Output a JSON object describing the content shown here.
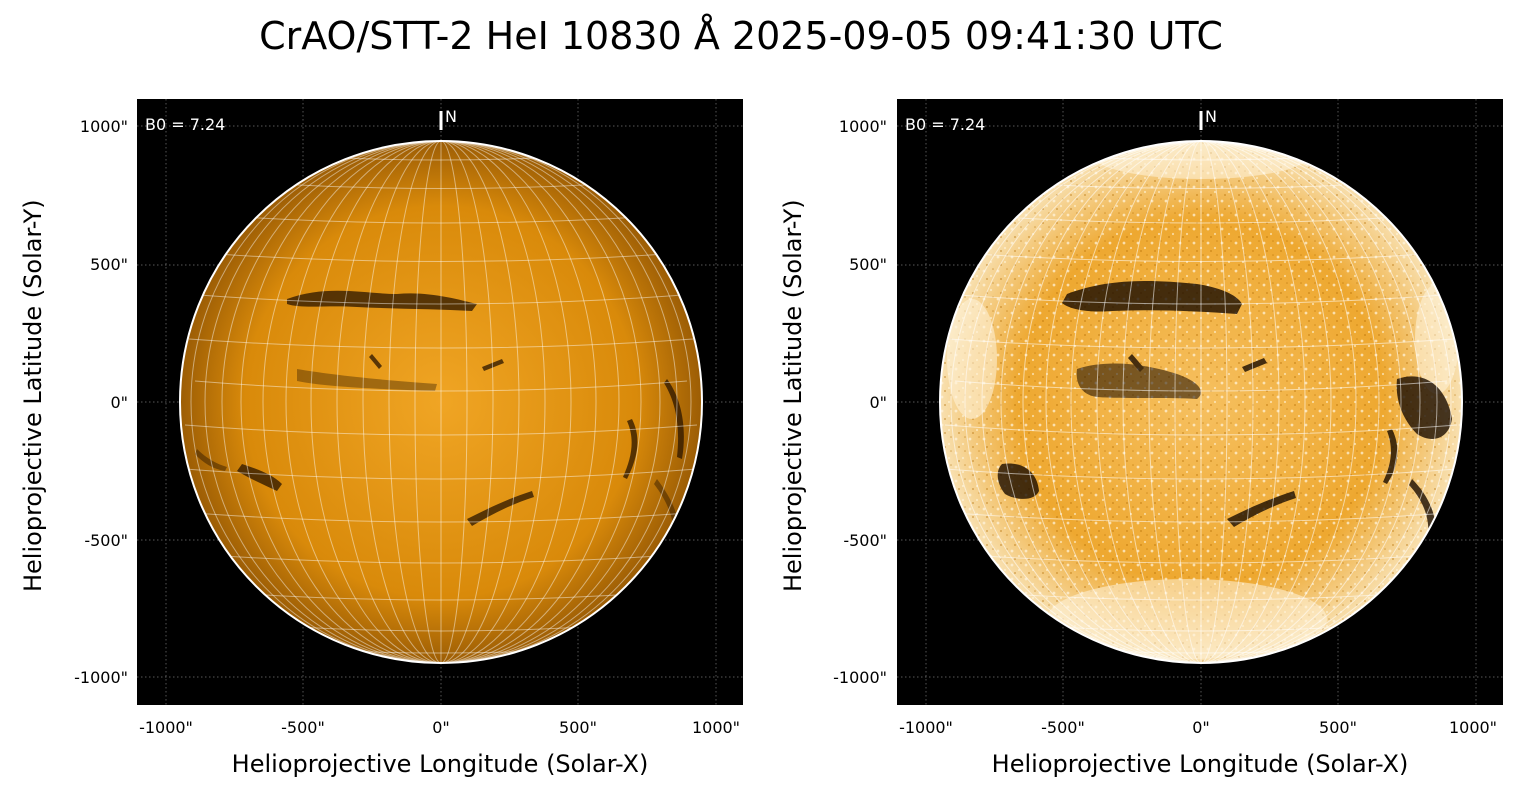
{
  "figure": {
    "title": "CrAO/STT-2 HeI 10830 Å 2025-09-05 09:41:30 UTC"
  },
  "colors": {
    "background": "#000000",
    "disk_left": "#d98a0a",
    "disk_right": "#e8a020",
    "limb": "#ffffff",
    "filament": "#1a0e00"
  },
  "panels": [
    {
      "name": "left",
      "b0_label": "B0 = 7.24",
      "north_label": "N",
      "xlabel": "Helioprojective Longitude (Solar-X)",
      "ylabel": "Helioprojective Latitude (Solar-Y)",
      "xticks": [
        "-1000\"",
        "-500\"",
        "0\"",
        "500\"",
        "1000\""
      ],
      "yticks": [
        "1000\"",
        "500\"",
        "0\"",
        "-500\"",
        "-1000\""
      ],
      "contrast": "normal"
    },
    {
      "name": "right",
      "b0_label": "B0 = 7.24",
      "north_label": "N",
      "xlabel": "Helioprojective Longitude (Solar-X)",
      "ylabel": "Helioprojective Latitude (Solar-Y)",
      "xticks": [
        "-1000\"",
        "-500\"",
        "0\"",
        "500\"",
        "1000\""
      ],
      "yticks": [
        "1000\"",
        "500\"",
        "0\"",
        "-500\"",
        "-1000\""
      ],
      "contrast": "enhanced"
    }
  ]
}
